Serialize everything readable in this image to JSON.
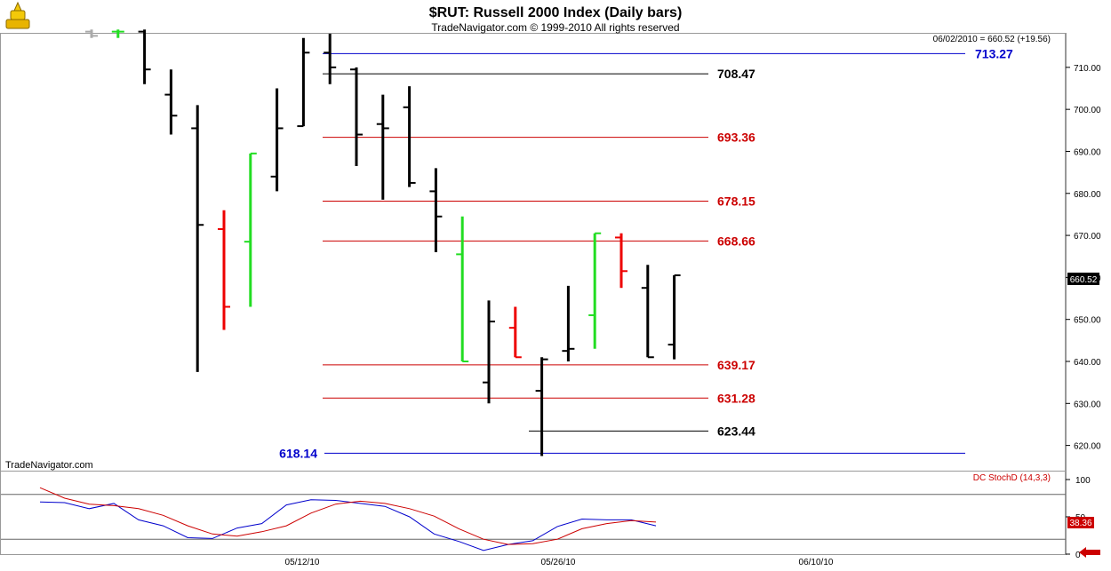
{
  "app": {
    "title": "$RUT:  Russell 2000 Index  (Daily bars)",
    "copyright": "TradeNavigator.com © 1999-2010 All rights reserved",
    "watermark": "TradeNavigator.com",
    "last_quote": "06/02/2010 = 660.52 (+19.56)",
    "current_price_label": "660.52"
  },
  "chart_data": [
    {
      "type": "ohlc",
      "title": "$RUT:  Russell 2000 Index  (Daily bars)",
      "ylim": [
        614,
        718
      ],
      "yticks": [
        620,
        630,
        640,
        650,
        660,
        670,
        680,
        690,
        700,
        710
      ],
      "ytick_labels": [
        "620.00",
        "630.00",
        "640.00",
        "650.00",
        "660.00",
        "670.00",
        "680.00",
        "690.00",
        "700.00",
        "710.00"
      ],
      "xtick_labels": [
        "05/12/10",
        "05/26/10",
        "06/10/10"
      ],
      "up_color": "#22dd22",
      "down_color": "#ee0000",
      "neutral_color": "#000000",
      "bars": [
        {
          "open": 718.5,
          "high": 719,
          "low": 717,
          "close": 717.5,
          "color": "gray"
        },
        {
          "open": 718.5,
          "high": 719,
          "low": 717,
          "close": 718.5,
          "color": "green"
        },
        {
          "open": 718.5,
          "high": 719,
          "low": 706,
          "close": 709.5,
          "color": "black"
        },
        {
          "open": 703.5,
          "high": 709.5,
          "low": 694,
          "close": 698.5,
          "color": "black"
        },
        {
          "open": 695.5,
          "high": 701,
          "low": 637.5,
          "close": 672.5,
          "color": "black"
        },
        {
          "open": 671.5,
          "high": 676,
          "low": 647.5,
          "close": 653.0,
          "color": "red"
        },
        {
          "open": 668.5,
          "high": 689.5,
          "low": 653.0,
          "close": 689.5,
          "color": "green"
        },
        {
          "open": 684.0,
          "high": 705.0,
          "low": 680.5,
          "close": 695.5,
          "color": "black"
        },
        {
          "open": 696.0,
          "high": 717.0,
          "low": 696.0,
          "close": 713.5,
          "color": "black"
        },
        {
          "open": 713.5,
          "high": 718.0,
          "low": 706.0,
          "close": 710.0,
          "color": "black"
        },
        {
          "open": 709.5,
          "high": 710.0,
          "low": 686.5,
          "close": 694.0,
          "color": "black"
        },
        {
          "open": 696.5,
          "high": 703.5,
          "low": 678.5,
          "close": 695.5,
          "color": "black"
        },
        {
          "open": 700.5,
          "high": 705.5,
          "low": 681.5,
          "close": 682.5,
          "color": "black"
        },
        {
          "open": 680.5,
          "high": 686.0,
          "low": 666.0,
          "close": 674.5,
          "color": "black"
        },
        {
          "open": 665.5,
          "high": 674.5,
          "low": 640.0,
          "close": 640.0,
          "color": "green"
        },
        {
          "open": 635.0,
          "high": 654.5,
          "low": 630.0,
          "close": 649.5,
          "color": "black"
        },
        {
          "open": 648.0,
          "high": 653.0,
          "low": 641.0,
          "close": 641.0,
          "color": "red"
        },
        {
          "open": 633.0,
          "high": 641.0,
          "low": 617.5,
          "close": 640.5,
          "color": "black"
        },
        {
          "open": 642.5,
          "high": 658.0,
          "low": 640.0,
          "close": 643.0,
          "color": "black"
        },
        {
          "open": 651.0,
          "high": 670.5,
          "low": 643.0,
          "close": 670.5,
          "color": "green"
        },
        {
          "open": 669.5,
          "high": 670.5,
          "low": 657.5,
          "close": 661.5,
          "color": "red"
        },
        {
          "open": 657.5,
          "high": 663.0,
          "low": 641.0,
          "close": 641.0,
          "color": "black"
        },
        {
          "open": 644.0,
          "high": 660.5,
          "low": 640.5,
          "close": 660.5,
          "color": "black"
        }
      ],
      "levels": [
        {
          "value": 713.27,
          "label": "713.27",
          "color": "#0000cc",
          "label_side": "right"
        },
        {
          "value": 708.47,
          "label": "708.47",
          "color": "#000000",
          "label_side": "right"
        },
        {
          "value": 693.36,
          "label": "693.36",
          "color": "#cc0000",
          "label_side": "right"
        },
        {
          "value": 678.15,
          "label": "678.15",
          "color": "#cc0000",
          "label_side": "right"
        },
        {
          "value": 668.66,
          "label": "668.66",
          "color": "#cc0000",
          "label_side": "right"
        },
        {
          "value": 639.17,
          "label": "639.17",
          "color": "#cc0000",
          "label_side": "right"
        },
        {
          "value": 631.28,
          "label": "631.28",
          "color": "#cc0000",
          "label_side": "right"
        },
        {
          "value": 623.44,
          "label": "623.44",
          "color": "#000000",
          "label_side": "right"
        },
        {
          "value": 618.14,
          "label": "618.14",
          "color": "#0000cc",
          "label_side": "left"
        }
      ]
    },
    {
      "type": "line",
      "title": "DC StochD (14,3,3)",
      "ylim": [
        0,
        100
      ],
      "yticks": [
        0,
        50,
        100
      ],
      "ytick_labels": [
        "0",
        "50",
        "100"
      ],
      "reference_lines": [
        80,
        20
      ],
      "current_value_label": "38.36",
      "series": [
        {
          "color": "#0000cc",
          "values": [
            70,
            69,
            61,
            68,
            46,
            38,
            22,
            21,
            35,
            41,
            66,
            73,
            72,
            68,
            64,
            50,
            27,
            17,
            5,
            13,
            18,
            37,
            47,
            46,
            46,
            38
          ]
        },
        {
          "color": "#cc0000",
          "values": [
            89,
            75,
            67,
            65,
            61,
            52,
            38,
            27,
            24,
            30,
            38,
            55,
            67,
            71,
            68,
            61,
            51,
            34,
            20,
            13,
            14,
            20,
            34,
            41,
            45,
            43
          ]
        }
      ]
    }
  ]
}
